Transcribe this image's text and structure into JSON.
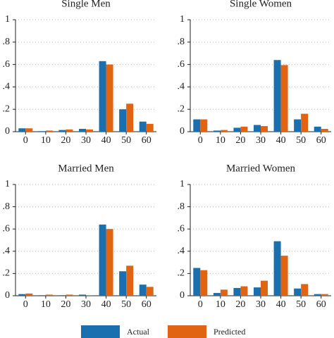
{
  "chart_data": [
    {
      "type": "bar",
      "title": "Single Men",
      "categories": [
        "0",
        "10",
        "20",
        "30",
        "40",
        "50",
        "60"
      ],
      "series": [
        {
          "name": "Actual",
          "color": "#1a6faf",
          "values": [
            0.03,
            0.005,
            0.015,
            0.025,
            0.63,
            0.2,
            0.09
          ]
        },
        {
          "name": "Predicted",
          "color": "#e06412",
          "values": [
            0.03,
            0.01,
            0.02,
            0.02,
            0.6,
            0.25,
            0.07
          ]
        }
      ],
      "ylim": [
        0,
        1
      ],
      "yticks": [
        0,
        {
          "value": 0.2,
          "label": ".2"
        },
        {
          "value": 0.4,
          "label": ".4"
        },
        {
          "value": 0.6,
          "label": ".6"
        },
        {
          "value": 0.8,
          "label": ".8"
        },
        1
      ],
      "grid": true
    },
    {
      "type": "bar",
      "title": "Single Women",
      "categories": [
        "0",
        "10",
        "20",
        "30",
        "40",
        "50",
        "60"
      ],
      "series": [
        {
          "name": "Actual",
          "color": "#1a6faf",
          "values": [
            0.11,
            0.01,
            0.035,
            0.06,
            0.64,
            0.11,
            0.045
          ]
        },
        {
          "name": "Predicted",
          "color": "#e06412",
          "values": [
            0.11,
            0.015,
            0.045,
            0.05,
            0.595,
            0.16,
            0.025
          ]
        }
      ],
      "ylim": [
        0,
        1
      ],
      "yticks": [
        0,
        {
          "value": 0.2,
          "label": ".2"
        },
        {
          "value": 0.4,
          "label": ".4"
        },
        {
          "value": 0.6,
          "label": ".6"
        },
        {
          "value": 0.8,
          "label": ".8"
        },
        1
      ],
      "grid": true
    },
    {
      "type": "bar",
      "title": "Married Men",
      "categories": [
        "0",
        "10",
        "20",
        "30",
        "40",
        "50",
        "60"
      ],
      "series": [
        {
          "name": "Actual",
          "color": "#1a6faf",
          "values": [
            0.015,
            0.005,
            0.005,
            0.01,
            0.64,
            0.22,
            0.1
          ]
        },
        {
          "name": "Predicted",
          "color": "#e06412",
          "values": [
            0.02,
            0.01,
            0.01,
            0.005,
            0.6,
            0.27,
            0.08
          ]
        }
      ],
      "ylim": [
        0,
        1
      ],
      "yticks": [
        0,
        {
          "value": 0.2,
          "label": ".2"
        },
        {
          "value": 0.4,
          "label": ".4"
        },
        {
          "value": 0.6,
          "label": ".6"
        },
        {
          "value": 0.8,
          "label": ".8"
        },
        1
      ],
      "grid": true
    },
    {
      "type": "bar",
      "title": "Married Women",
      "categories": [
        "0",
        "10",
        "20",
        "30",
        "40",
        "50",
        "60"
      ],
      "series": [
        {
          "name": "Actual",
          "color": "#1a6faf",
          "values": [
            0.25,
            0.025,
            0.07,
            0.075,
            0.49,
            0.065,
            0.015
          ]
        },
        {
          "name": "Predicted",
          "color": "#e06412",
          "values": [
            0.23,
            0.055,
            0.085,
            0.135,
            0.36,
            0.105,
            0.015
          ]
        }
      ],
      "ylim": [
        0,
        1
      ],
      "yticks": [
        0,
        {
          "value": 0.2,
          "label": ".2"
        },
        {
          "value": 0.4,
          "label": ".4"
        },
        {
          "value": 0.6,
          "label": ".6"
        },
        {
          "value": 0.8,
          "label": ".8"
        },
        1
      ],
      "grid": true
    }
  ]
}
